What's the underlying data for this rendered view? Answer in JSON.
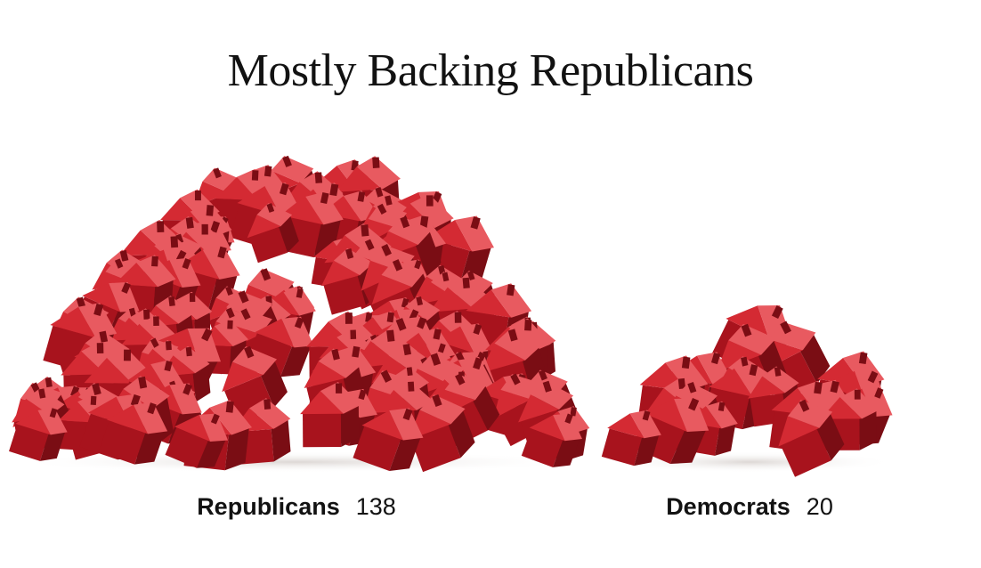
{
  "chart_data": {
    "type": "bar",
    "title": "Mostly Backing Republicans",
    "categories": [
      "Republicans",
      "Democrats"
    ],
    "values": [
      138,
      20
    ],
    "xlabel": "",
    "ylabel": "",
    "grid": false,
    "legend": "none",
    "mark": "pile of red toy houses"
  },
  "colors": {
    "house_dark": "#7a0d14",
    "house_mid": "#a8131d",
    "house_light": "#d42a33",
    "house_highlight": "#e85a60",
    "shadow": "#e8e4e2"
  }
}
